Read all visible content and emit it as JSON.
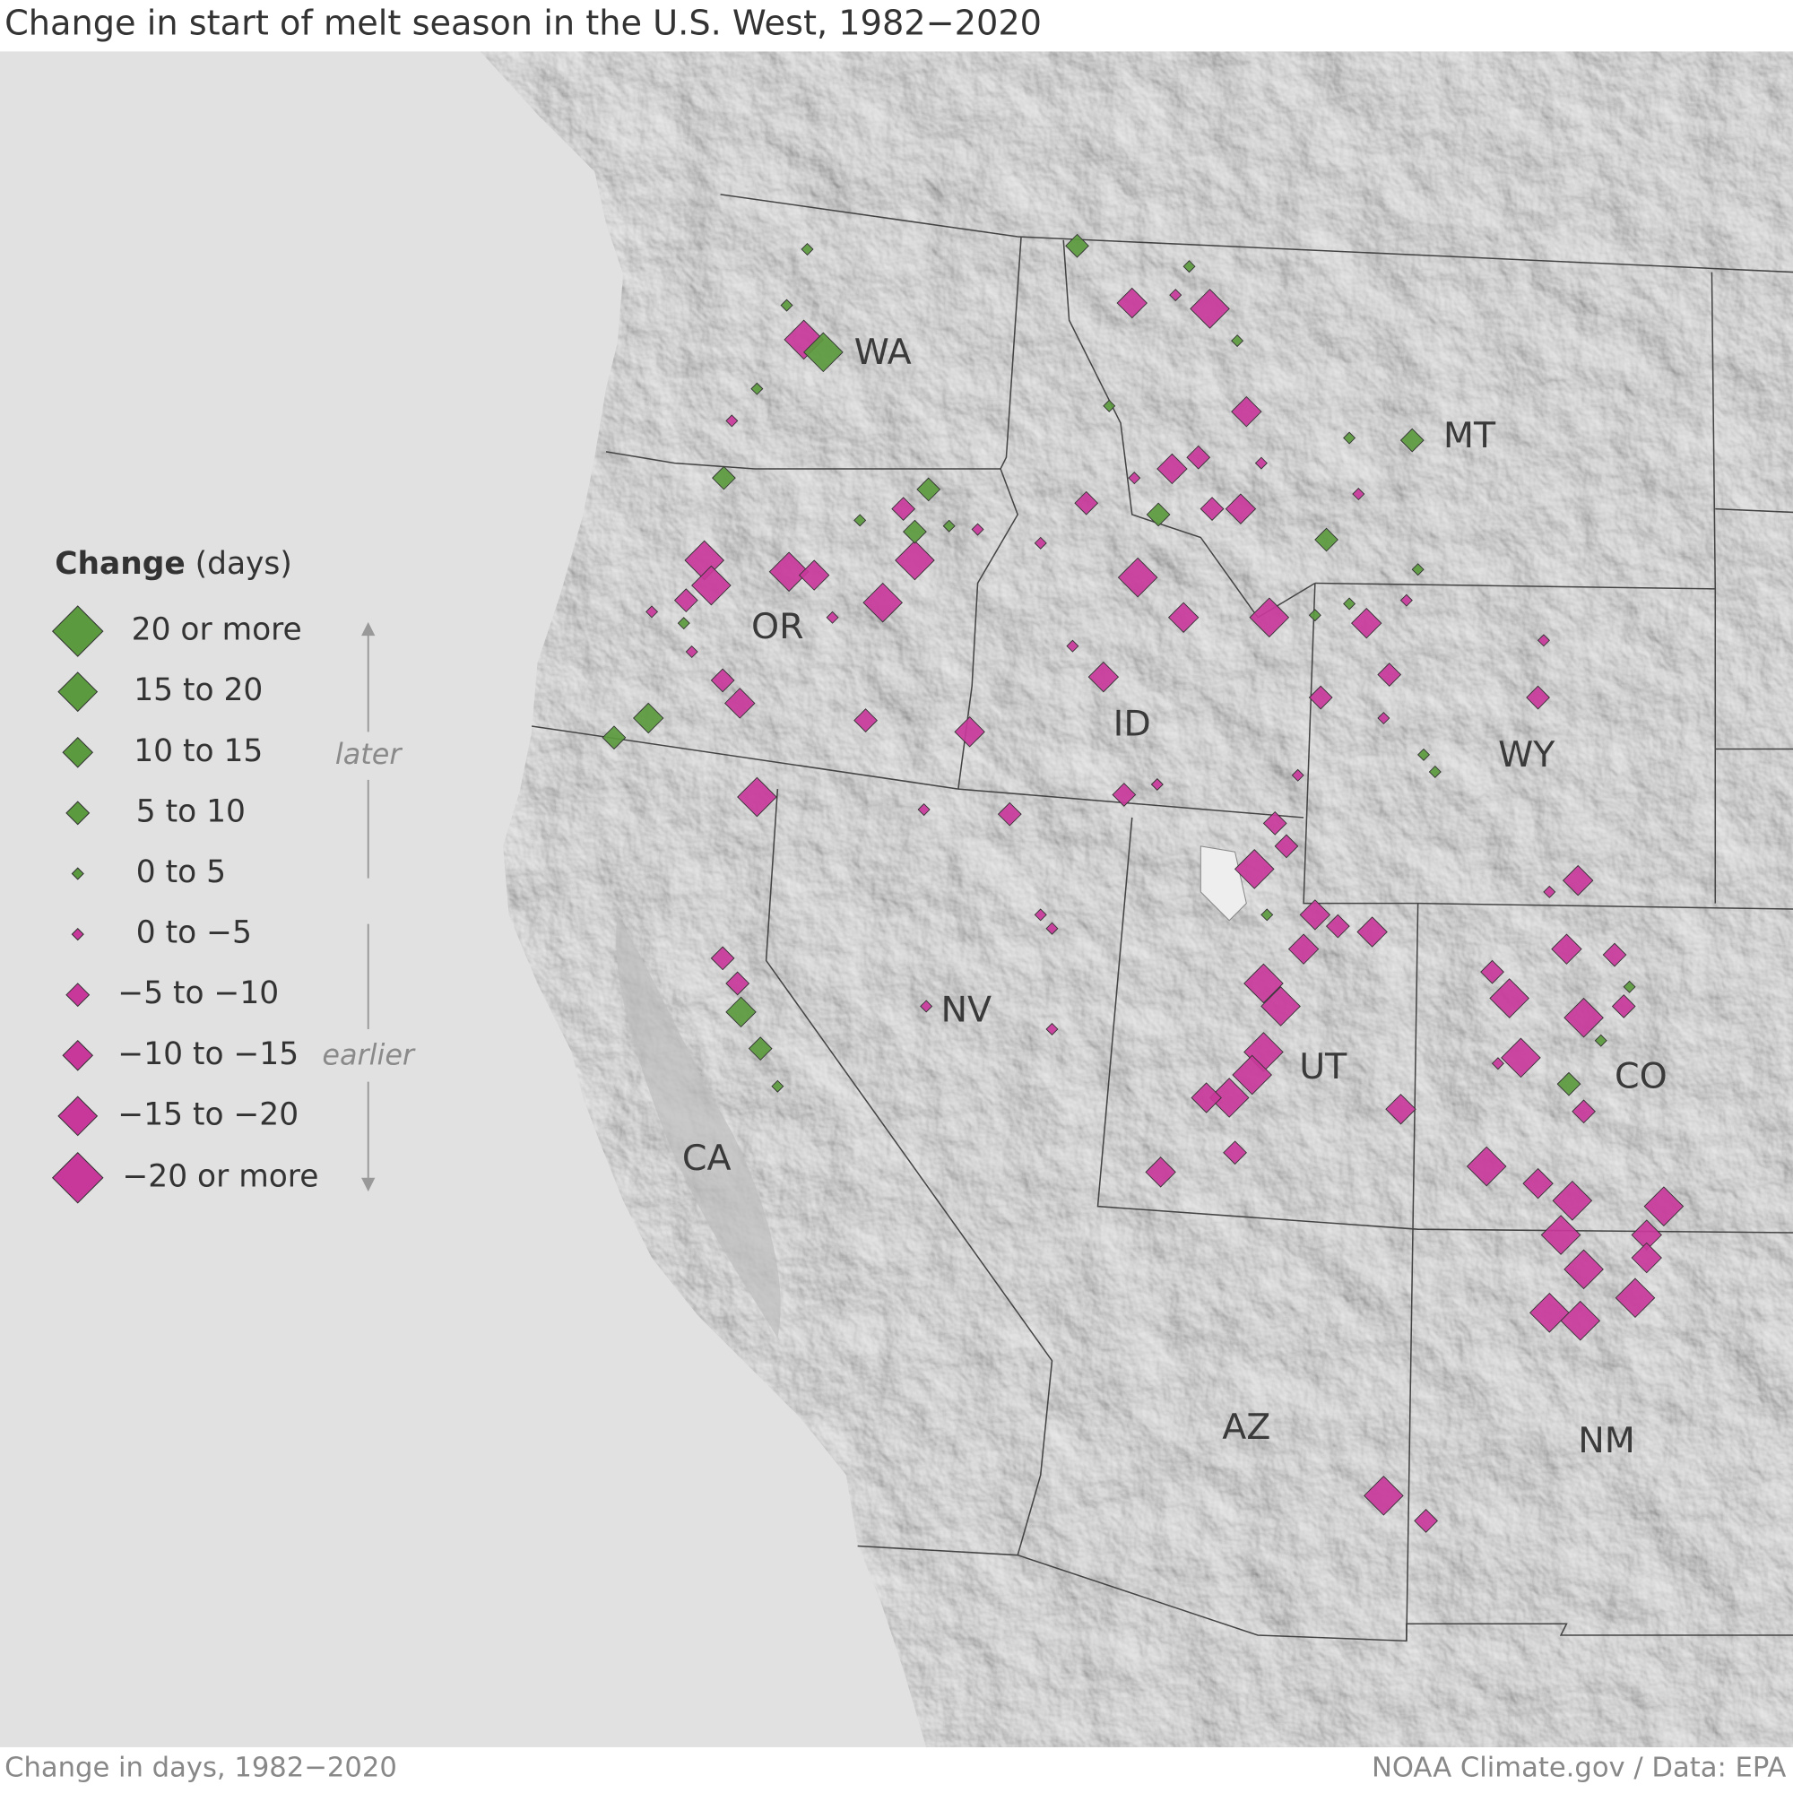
{
  "title": "Change in start of melt season in the U.S. West, 1982−2020",
  "legend": {
    "title": "Change",
    "unit": "(days)",
    "items": [
      {
        "label": "20 or more",
        "color": "#5b9a3e"
      },
      {
        "label": "15 to 20",
        "color": "#5b9a3e"
      },
      {
        "label": "10 to 15",
        "color": "#5b9a3e"
      },
      {
        "label": "5 to 10",
        "color": "#5b9a3e"
      },
      {
        "label": "0 to  5",
        "color": "#5b9a3e"
      },
      {
        "label": "0 to −5",
        "color": "#c8389a"
      },
      {
        "label": "−5 to −10",
        "color": "#c8389a"
      },
      {
        "label": "−10 to −15",
        "color": "#c8389a"
      },
      {
        "label": "−15 to −20",
        "color": "#c8389a"
      },
      {
        "label": "−20 or more",
        "color": "#c8389a"
      }
    ],
    "later": "later",
    "earlier": "earlier"
  },
  "state_labels": [
    "WA",
    "MT",
    "OR",
    "ID",
    "WY",
    "NV",
    "UT",
    "CO",
    "CA",
    "AZ",
    "NM"
  ],
  "footer": {
    "left": "Change in days, 1982−2020",
    "right": "NOAA Climate.gov / Data: EPA"
  }
}
